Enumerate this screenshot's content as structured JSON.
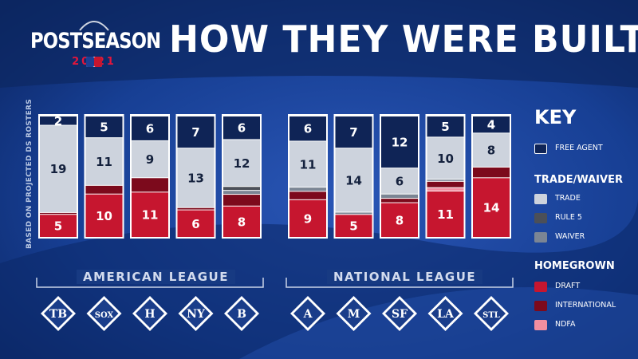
{
  "header": {
    "logo_text": "POSTSEASON",
    "logo_year": "20 21",
    "title": "HOW THEY WERE BUILT",
    "side_label": "BASED ON PROJECTED DS ROSTERS"
  },
  "colors": {
    "free_agent": "#0f2456",
    "trade": "#cdd3dd",
    "rule5": "#4b4f58",
    "waiver": "#7b8594",
    "draft": "#c6162f",
    "international": "#7c0a1c",
    "ndfa": "#f28ea0"
  },
  "chart_data": {
    "type": "stacked_bar",
    "stack_order_bottom_to_top": [
      "Draft",
      "NDFA",
      "International",
      "Waiver",
      "Rule 5",
      "Trade",
      "Free Agent"
    ],
    "groups": [
      {
        "name": "AMERICAN LEAGUE",
        "teams": [
          {
            "team": "Rays",
            "logo_text": "TB",
            "free_agent": 2,
            "trade": 19,
            "rule5": 0,
            "waiver": 0,
            "international": 0.4,
            "ndfa": 0,
            "draft": 5
          },
          {
            "team": "White Sox",
            "logo_text": "SOX",
            "free_agent": 5,
            "trade": 11,
            "rule5": 0,
            "waiver": 0,
            "international": 2,
            "ndfa": 0,
            "draft": 10
          },
          {
            "team": "Astros",
            "logo_text": "H",
            "free_agent": 6,
            "trade": 9,
            "rule5": 0,
            "waiver": 0,
            "international": 3.5,
            "ndfa": 0,
            "draft": 11
          },
          {
            "team": "Yankees",
            "logo_text": "NY",
            "free_agent": 7,
            "trade": 13,
            "rule5": 0,
            "waiver": 0,
            "international": 0.5,
            "ndfa": 0,
            "draft": 6
          },
          {
            "team": "Red Sox",
            "logo_text": "B",
            "free_agent": 6,
            "trade": 12,
            "rule5": 1,
            "waiver": 1,
            "international": 3,
            "ndfa": 0,
            "draft": 8
          }
        ]
      },
      {
        "name": "NATIONAL LEAGUE",
        "teams": [
          {
            "team": "Braves",
            "logo_text": "A",
            "free_agent": 6,
            "trade": 11,
            "rule5": 0,
            "waiver": 1,
            "international": 2,
            "ndfa": 0,
            "draft": 9
          },
          {
            "team": "Brewers",
            "logo_text": "M",
            "free_agent": 7,
            "trade": 14,
            "rule5": 0,
            "waiver": 0.5,
            "international": 0,
            "ndfa": 0,
            "draft": 5
          },
          {
            "team": "Giants",
            "logo_text": "SF",
            "free_agent": 12,
            "trade": 6,
            "rule5": 0,
            "waiver": 1,
            "international": 1,
            "ndfa": 0,
            "draft": 8
          },
          {
            "team": "Dodgers",
            "logo_text": "LA",
            "free_agent": 5,
            "trade": 10,
            "rule5": 0,
            "waiver": 0.5,
            "international": 1.5,
            "ndfa": 0.8,
            "draft": 11
          },
          {
            "team": "Cardinals",
            "logo_text": "STL",
            "free_agent": 4,
            "trade": 8,
            "rule5": 0,
            "waiver": 0,
            "international": 2.5,
            "ndfa": 0,
            "draft": 14
          }
        ]
      }
    ],
    "legend": {
      "title": "KEY",
      "sections": [
        {
          "heading": "",
          "items": [
            {
              "label": "FREE AGENT",
              "key": "free_agent"
            }
          ]
        },
        {
          "heading": "TRADE/WAIVER",
          "items": [
            {
              "label": "TRADE",
              "key": "trade"
            },
            {
              "label": "RULE 5",
              "key": "rule5"
            },
            {
              "label": "WAIVER",
              "key": "waiver"
            }
          ]
        },
        {
          "heading": "HOMEGROWN",
          "items": [
            {
              "label": "DRAFT",
              "key": "draft"
            },
            {
              "label": "INTERNATIONAL",
              "key": "international"
            },
            {
              "label": "NDFA",
              "key": "ndfa"
            }
          ]
        }
      ],
      "placement": "right"
    }
  }
}
